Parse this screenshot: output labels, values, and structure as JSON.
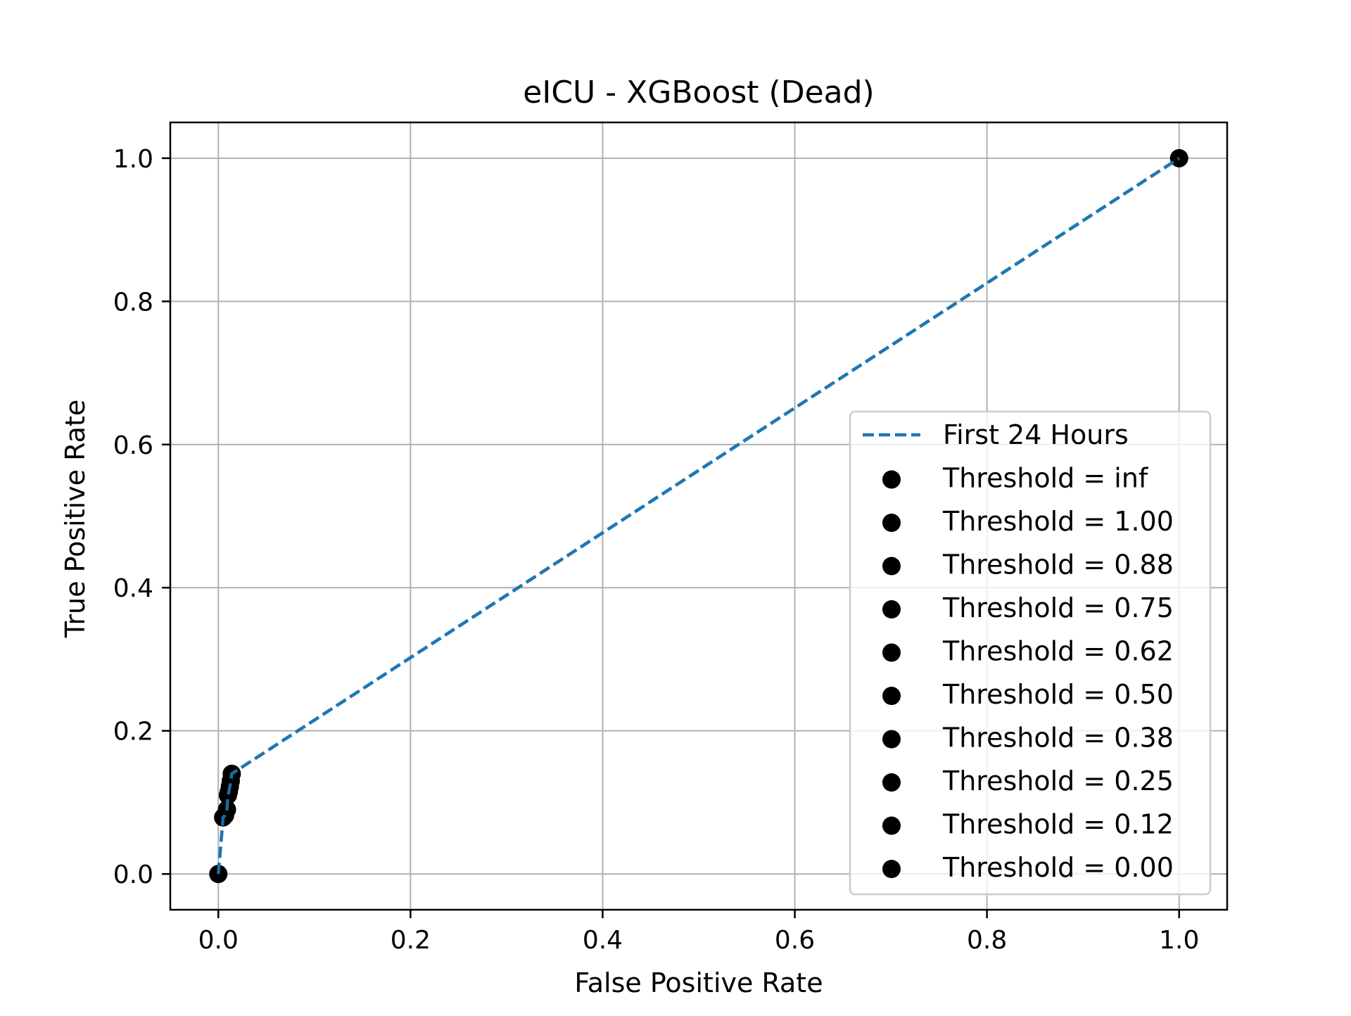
{
  "chart_data": {
    "type": "line",
    "title": "eICU - XGBoost (Dead)",
    "xlabel": "False Positive Rate",
    "ylabel": "True Positive Rate",
    "xlim": [
      -0.05,
      1.05
    ],
    "ylim": [
      -0.05,
      1.05
    ],
    "xticks": [
      0.0,
      0.2,
      0.4,
      0.6,
      0.8,
      1.0
    ],
    "xtick_labels": [
      "0.0",
      "0.2",
      "0.4",
      "0.6",
      "0.8",
      "1.0"
    ],
    "yticks": [
      0.0,
      0.2,
      0.4,
      0.6,
      0.8,
      1.0
    ],
    "ytick_labels": [
      "0.0",
      "0.2",
      "0.4",
      "0.6",
      "0.8",
      "1.0"
    ],
    "grid": true,
    "legend_position": "lower-right",
    "series": [
      {
        "name": "First 24 Hours",
        "style": "dashed",
        "color": "#1f77b4",
        "x": [
          0.0,
          0.005,
          0.007,
          0.009,
          0.01,
          0.011,
          0.012,
          0.014,
          1.0
        ],
        "y": [
          0.0,
          0.079,
          0.082,
          0.09,
          0.11,
          0.115,
          0.122,
          0.14,
          1.0
        ]
      }
    ],
    "points": [
      {
        "label": "Threshold = inf",
        "x": 0.0,
        "y": 0.0
      },
      {
        "label": "Threshold = 1.00",
        "x": 0.005,
        "y": 0.079
      },
      {
        "label": "Threshold = 0.88",
        "x": 0.007,
        "y": 0.082
      },
      {
        "label": "Threshold = 0.75",
        "x": 0.009,
        "y": 0.09
      },
      {
        "label": "Threshold = 0.62",
        "x": 0.01,
        "y": 0.11
      },
      {
        "label": "Threshold = 0.50",
        "x": 0.011,
        "y": 0.115
      },
      {
        "label": "Threshold = 0.38",
        "x": 0.012,
        "y": 0.122
      },
      {
        "label": "Threshold = 0.25",
        "x": 0.013,
        "y": 0.13
      },
      {
        "label": "Threshold = 0.12",
        "x": 0.014,
        "y": 0.14
      },
      {
        "label": "Threshold = 0.00",
        "x": 1.0,
        "y": 1.0
      }
    ],
    "point_color": "#000000"
  }
}
